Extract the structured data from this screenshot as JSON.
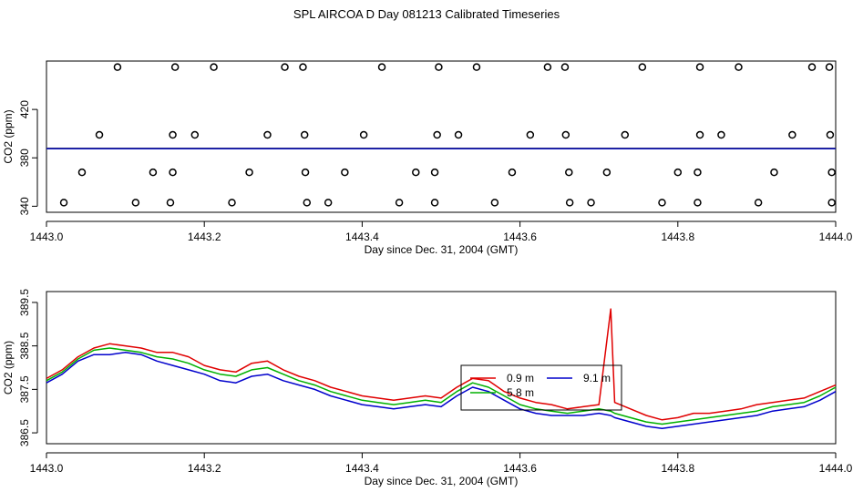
{
  "page_title": "SPL AIRCOA D  Day 081213  Calibrated Timeseries",
  "colors": {
    "red": "#e00000",
    "green": "#00b000",
    "blue": "#0000cc",
    "axis": "#000000"
  },
  "chart_data": [
    {
      "type": "scatter",
      "xlabel": "Day since Dec. 31, 2004 (GMT)",
      "ylabel": "CO2 (ppm)",
      "xlim": [
        1443.0,
        1444.0
      ],
      "ylim": [
        335,
        460
      ],
      "xticks": [
        "1443.0",
        "1443.2",
        "1443.4",
        "1443.6",
        "1443.8",
        "1444.0"
      ],
      "yticks": [
        "340",
        "380",
        "420"
      ],
      "points": [
        [
          1443.09,
          455
        ],
        [
          1443.163,
          455
        ],
        [
          1443.212,
          455
        ],
        [
          1443.302,
          455
        ],
        [
          1443.325,
          455
        ],
        [
          1443.425,
          455
        ],
        [
          1443.497,
          455
        ],
        [
          1443.545,
          455
        ],
        [
          1443.635,
          455
        ],
        [
          1443.657,
          455
        ],
        [
          1443.755,
          455
        ],
        [
          1443.828,
          455
        ],
        [
          1443.877,
          455
        ],
        [
          1443.97,
          455
        ],
        [
          1443.992,
          455
        ],
        [
          1443.067,
          399
        ],
        [
          1443.16,
          399
        ],
        [
          1443.188,
          399
        ],
        [
          1443.28,
          399
        ],
        [
          1443.327,
          399
        ],
        [
          1443.402,
          399
        ],
        [
          1443.495,
          399
        ],
        [
          1443.522,
          399
        ],
        [
          1443.613,
          399
        ],
        [
          1443.658,
          399
        ],
        [
          1443.733,
          399
        ],
        [
          1443.828,
          399
        ],
        [
          1443.855,
          399
        ],
        [
          1443.945,
          399
        ],
        [
          1443.993,
          399
        ],
        [
          1443.045,
          368
        ],
        [
          1443.135,
          368
        ],
        [
          1443.16,
          368
        ],
        [
          1443.257,
          368
        ],
        [
          1443.328,
          368
        ],
        [
          1443.378,
          368
        ],
        [
          1443.468,
          368
        ],
        [
          1443.492,
          368
        ],
        [
          1443.59,
          368
        ],
        [
          1443.662,
          368
        ],
        [
          1443.71,
          368
        ],
        [
          1443.8,
          368
        ],
        [
          1443.825,
          368
        ],
        [
          1443.922,
          368
        ],
        [
          1443.995,
          368
        ],
        [
          1443.022,
          343
        ],
        [
          1443.113,
          343
        ],
        [
          1443.157,
          343
        ],
        [
          1443.235,
          343
        ],
        [
          1443.33,
          343
        ],
        [
          1443.357,
          343
        ],
        [
          1443.447,
          343
        ],
        [
          1443.492,
          343
        ],
        [
          1443.568,
          343
        ],
        [
          1443.663,
          343
        ],
        [
          1443.69,
          343
        ],
        [
          1443.78,
          343
        ],
        [
          1443.825,
          343
        ],
        [
          1443.902,
          343
        ],
        [
          1443.995,
          343
        ]
      ],
      "series": [
        {
          "color": "#e00000",
          "values": [
            387.8,
            387.8
          ]
        },
        {
          "color": "#00b000",
          "values": [
            387.7,
            387.7
          ]
        },
        {
          "color": "#0000cc",
          "values": [
            387.6,
            387.6
          ]
        }
      ]
    },
    {
      "type": "line",
      "xlabel": "Day since Dec. 31, 2004 (GMT)",
      "ylabel": "CO2 (ppm)",
      "xlim": [
        1443.0,
        1444.0
      ],
      "ylim": [
        386.25,
        389.75
      ],
      "xticks": [
        "1443.0",
        "1443.2",
        "1443.4",
        "1443.6",
        "1443.8",
        "1444.0"
      ],
      "yticks": [
        "386.5",
        "387.5",
        "388.5",
        "389.5"
      ],
      "x": [
        1443.0,
        1443.02,
        1443.04,
        1443.06,
        1443.08,
        1443.1,
        1443.12,
        1443.14,
        1443.16,
        1443.18,
        1443.2,
        1443.22,
        1443.24,
        1443.26,
        1443.28,
        1443.3,
        1443.32,
        1443.34,
        1443.36,
        1443.38,
        1443.4,
        1443.42,
        1443.44,
        1443.46,
        1443.48,
        1443.5,
        1443.52,
        1443.54,
        1443.56,
        1443.58,
        1443.6,
        1443.62,
        1443.64,
        1443.66,
        1443.68,
        1443.7,
        1443.715,
        1443.72,
        1443.74,
        1443.76,
        1443.78,
        1443.8,
        1443.82,
        1443.84,
        1443.86,
        1443.88,
        1443.9,
        1443.92,
        1443.94,
        1443.96,
        1443.98,
        1444.0
      ],
      "legend": {
        "placement": "center",
        "entries": [
          {
            "label": "9.1 m",
            "color": "#0000cc"
          },
          {
            "label": "5.8 m",
            "color": "#00b000"
          },
          {
            "label": "0.9 m",
            "color": "#e00000"
          }
        ]
      },
      "series": [
        {
          "color": "#e00000",
          "values": [
            387.75,
            387.95,
            388.25,
            388.45,
            388.55,
            388.5,
            388.45,
            388.35,
            388.35,
            388.25,
            388.05,
            387.95,
            387.9,
            388.1,
            388.15,
            387.95,
            387.8,
            387.7,
            387.55,
            387.45,
            387.35,
            387.3,
            387.25,
            387.3,
            387.35,
            387.3,
            387.55,
            387.75,
            387.7,
            387.45,
            387.3,
            387.2,
            387.15,
            387.05,
            387.1,
            387.15,
            389.35,
            387.2,
            387.05,
            386.9,
            386.8,
            386.85,
            386.95,
            386.95,
            387.0,
            387.05,
            387.15,
            387.2,
            387.25,
            387.3,
            387.45,
            387.6
          ]
        },
        {
          "color": "#00b000",
          "values": [
            387.7,
            387.9,
            388.2,
            388.4,
            388.45,
            388.4,
            388.35,
            388.25,
            388.2,
            388.1,
            387.95,
            387.85,
            387.8,
            387.95,
            388.0,
            387.85,
            387.7,
            387.6,
            387.45,
            387.35,
            387.25,
            387.2,
            387.15,
            387.2,
            387.25,
            387.2,
            387.45,
            387.65,
            387.55,
            387.35,
            387.15,
            387.05,
            387.0,
            386.95,
            387.0,
            387.05,
            387.0,
            386.95,
            386.85,
            386.75,
            386.7,
            386.75,
            386.8,
            386.85,
            386.9,
            386.95,
            387.0,
            387.1,
            387.15,
            387.2,
            387.35,
            387.55
          ]
        },
        {
          "color": "#0000cc",
          "values": [
            387.65,
            387.85,
            388.15,
            388.3,
            388.3,
            388.35,
            388.3,
            388.15,
            388.05,
            387.95,
            387.85,
            387.7,
            387.65,
            387.8,
            387.85,
            387.7,
            387.6,
            387.5,
            387.35,
            387.25,
            387.15,
            387.1,
            387.05,
            387.1,
            387.15,
            387.1,
            387.35,
            387.55,
            387.45,
            387.25,
            387.05,
            386.95,
            386.9,
            386.9,
            386.9,
            386.95,
            386.9,
            386.85,
            386.75,
            386.65,
            386.6,
            386.65,
            386.7,
            386.75,
            386.8,
            386.85,
            386.9,
            387.0,
            387.05,
            387.1,
            387.25,
            387.45
          ]
        }
      ]
    }
  ]
}
